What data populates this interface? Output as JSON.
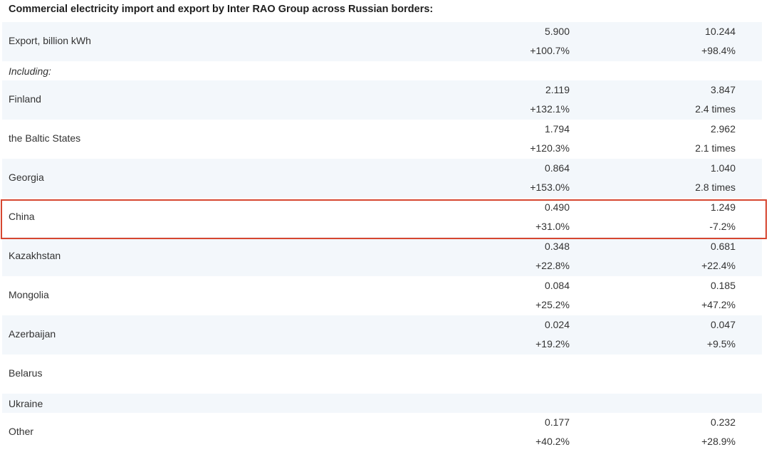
{
  "title": "Commercial electricity import and export by Inter RAO Group across Russian borders:",
  "highlight_color": "#d64630",
  "row_colors": {
    "blue": "#f3f7fb",
    "white": "#ffffff"
  },
  "rows": [
    {
      "label": "Export, billion kWh",
      "v1": "5.900",
      "c1": "+100.7%",
      "v2": "10.244",
      "c2": "+98.4%"
    },
    {
      "label": "Including:"
    },
    {
      "label": "Finland",
      "v1": "2.119",
      "c1": "+132.1%",
      "v2": "3.847",
      "c2": "2.4 times"
    },
    {
      "label": "the Baltic States",
      "v1": "1.794",
      "c1": "+120.3%",
      "v2": "2.962",
      "c2": "2.1 times"
    },
    {
      "label": "Georgia",
      "v1": "0.864",
      "c1": "+153.0%",
      "v2": "1.040",
      "c2": "2.8 times"
    },
    {
      "label": "China",
      "v1": "0.490",
      "c1": "+31.0%",
      "v2": "1.249",
      "c2": "-7.2%"
    },
    {
      "label": "Kazakhstan",
      "v1": "0.348",
      "c1": "+22.8%",
      "v2": "0.681",
      "c2": "+22.4%"
    },
    {
      "label": "Mongolia",
      "v1": "0.084",
      "c1": "+25.2%",
      "v2": "0.185",
      "c2": "+47.2%"
    },
    {
      "label": "Azerbaijan",
      "v1": "0.024",
      "c1": "+19.2%",
      "v2": "0.047",
      "c2": "+9.5%"
    },
    {
      "label": "Belarus"
    },
    {
      "label": "Ukraine"
    },
    {
      "label": "Other",
      "v1": "0.177",
      "c1": "+40.2%",
      "v2": "0.232",
      "c2": "+28.9%"
    }
  ]
}
